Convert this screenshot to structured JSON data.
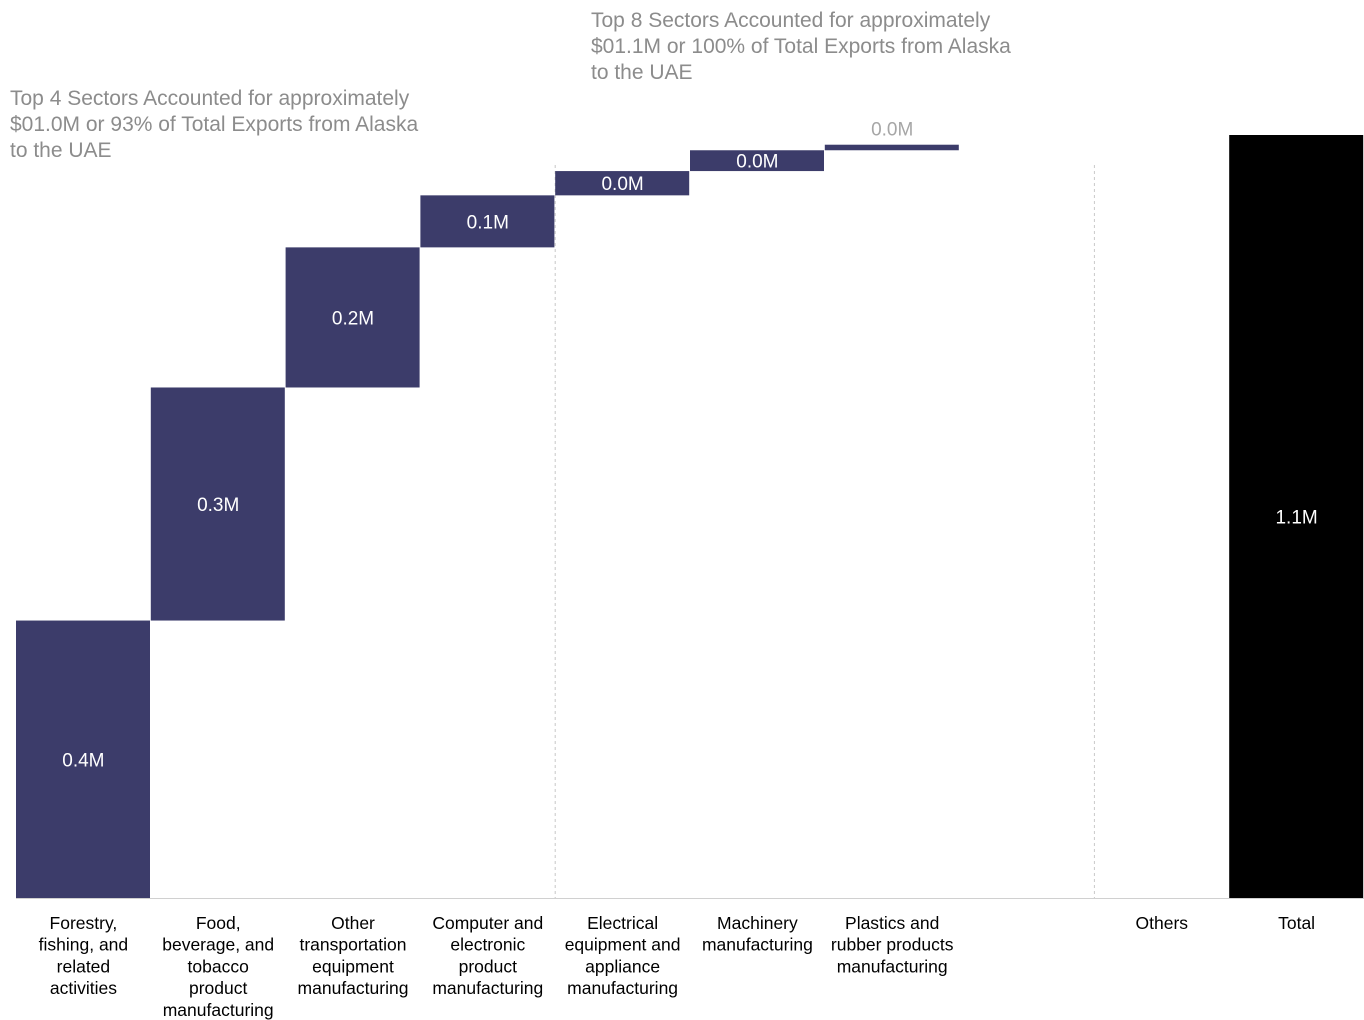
{
  "colors": {
    "bar": "#3c3c6a",
    "total_bar": "#000000",
    "label_inside": "#ffffff",
    "label_outside": "#a6a6a6",
    "category_text": "#000000",
    "annotation_text": "#8c8c8c",
    "divider": "#c8c8c8",
    "axis": "#d0d0d0"
  },
  "annotations": {
    "top4": [
      "Top 4 Sectors Accounted for approximately",
      "$01.0M or 93% of Total Exports from Alaska",
      "to the UAE"
    ],
    "top8": [
      "Top 8 Sectors Accounted for approximately",
      "$01.1M or 100% of Total Exports from Alaska",
      "to the UAE"
    ]
  },
  "chart_data": {
    "type": "bar",
    "subtype": "waterfall",
    "title": "",
    "xlabel": "",
    "ylabel": "",
    "ylim": [
      0,
      1.1
    ],
    "grid": false,
    "legend": "none",
    "categories": [
      [
        "Forestry,",
        "fishing, and",
        "related",
        "activities"
      ],
      [
        "Food,",
        "beverage, and",
        "tobacco",
        "product",
        "manufacturing"
      ],
      [
        "Other",
        "transportation",
        "equipment",
        "manufacturing"
      ],
      [
        "Computer and",
        "electronic",
        "product",
        "manufacturing"
      ],
      [
        "Electrical",
        "equipment and",
        "appliance",
        "manufacturing"
      ],
      [
        "Machinery",
        "manufacturing"
      ],
      [
        "Plastics and",
        "rubber products",
        "manufacturing"
      ],
      [
        ""
      ],
      [
        "Others"
      ],
      [
        "Total"
      ]
    ],
    "values": [
      0.4,
      0.336,
      0.202,
      0.075,
      0.035,
      0.03,
      0.008,
      0,
      0,
      1.1
    ],
    "data_labels": [
      "0.4M",
      "0.3M",
      "0.2M",
      "0.1M",
      "0.0M",
      "0.0M",
      "0.0M",
      "",
      "",
      "1.1M"
    ],
    "is_total": [
      false,
      false,
      false,
      false,
      false,
      false,
      false,
      false,
      false,
      true
    ],
    "dividers_after_index": [
      3,
      7
    ]
  }
}
